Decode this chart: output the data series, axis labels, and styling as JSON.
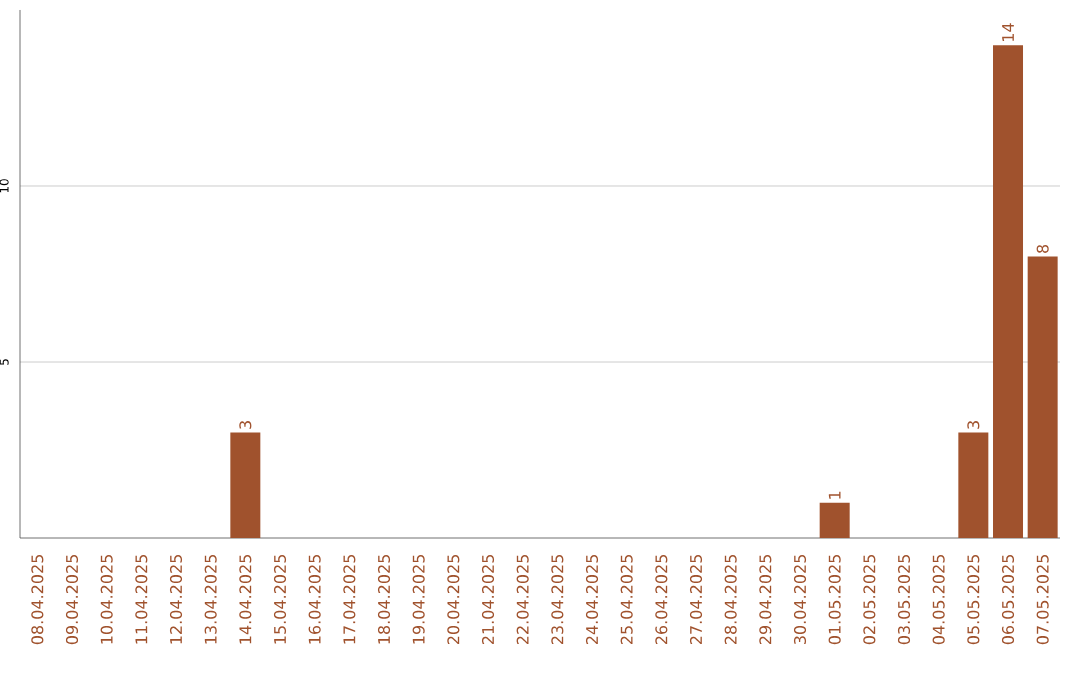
{
  "chart_data": {
    "type": "bar",
    "categories": [
      "08.04.2025",
      "09.04.2025",
      "10.04.2025",
      "11.04.2025",
      "12.04.2025",
      "13.04.2025",
      "14.04.2025",
      "15.04.2025",
      "16.04.2025",
      "17.04.2025",
      "18.04.2025",
      "19.04.2025",
      "20.04.2025",
      "21.04.2025",
      "22.04.2025",
      "23.04.2025",
      "24.04.2025",
      "25.04.2025",
      "26.04.2025",
      "27.04.2025",
      "28.04.2025",
      "29.04.2025",
      "30.04.2025",
      "01.05.2025",
      "02.05.2025",
      "03.05.2025",
      "04.05.2025",
      "05.05.2025",
      "06.05.2025",
      "07.05.2025"
    ],
    "values": [
      0,
      0,
      0,
      0,
      0,
      0,
      3,
      0,
      0,
      0,
      0,
      0,
      0,
      0,
      0,
      0,
      0,
      0,
      0,
      0,
      0,
      0,
      0,
      1,
      0,
      0,
      0,
      3,
      14,
      8
    ],
    "value_labels": [
      null,
      null,
      null,
      null,
      null,
      null,
      "3",
      null,
      null,
      null,
      null,
      null,
      null,
      null,
      null,
      null,
      null,
      null,
      null,
      null,
      null,
      null,
      null,
      "1",
      null,
      null,
      null,
      "3",
      "14",
      "8"
    ],
    "color": "#a0522d",
    "ylim": [
      0,
      15
    ],
    "yticks": [
      5,
      10
    ],
    "grid": "y"
  }
}
